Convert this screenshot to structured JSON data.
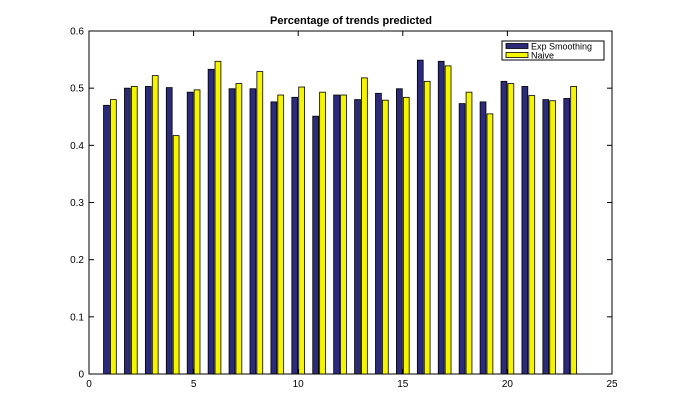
{
  "chart_data": {
    "type": "bar",
    "title": "Percentage of trends predicted",
    "xlabel": "",
    "ylabel": "",
    "x": [
      1,
      2,
      3,
      4,
      5,
      6,
      7,
      8,
      9,
      10,
      11,
      12,
      13,
      14,
      15,
      16,
      17,
      18,
      19,
      20,
      21,
      22,
      23
    ],
    "xlim": [
      0,
      25
    ],
    "ylim": [
      0,
      0.6
    ],
    "xticks": [
      0,
      5,
      10,
      15,
      20,
      25
    ],
    "xtick_labels": [
      "0",
      "5",
      "10",
      "15",
      "20",
      "25"
    ],
    "yticks": [
      0,
      0.1,
      0.2,
      0.3,
      0.4,
      0.5,
      0.6
    ],
    "ytick_labels": [
      "0",
      "0.1",
      "0.2",
      "0.3",
      "0.4",
      "0.5",
      "0.6"
    ],
    "grid": false,
    "legend_position": "top-right",
    "series": [
      {
        "name": "Exp Smoothing",
        "color": "#2b2b7a",
        "values": [
          0.47,
          0.5,
          0.503,
          0.501,
          0.493,
          0.533,
          0.499,
          0.499,
          0.476,
          0.484,
          0.451,
          0.488,
          0.48,
          0.491,
          0.499,
          0.549,
          0.547,
          0.473,
          0.476,
          0.512,
          0.503,
          0.48,
          0.482
        ]
      },
      {
        "name": "Naive",
        "color": "#f5f500",
        "values": [
          0.48,
          0.503,
          0.522,
          0.417,
          0.497,
          0.547,
          0.508,
          0.529,
          0.488,
          0.502,
          0.493,
          0.488,
          0.518,
          0.479,
          0.484,
          0.512,
          0.539,
          0.493,
          0.455,
          0.508,
          0.487,
          0.478,
          0.503
        ]
      }
    ]
  }
}
